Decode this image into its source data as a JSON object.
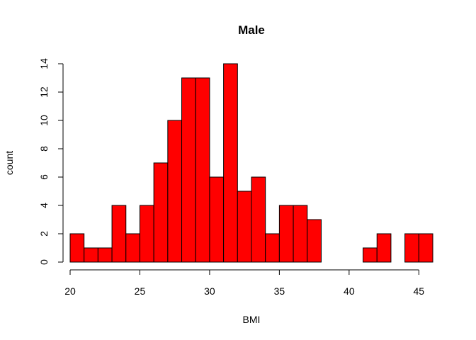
{
  "chart_data": {
    "type": "bar",
    "title": "Male",
    "xlabel": "BMI",
    "ylabel": "count",
    "bar_color": "#ff0000",
    "bins": [
      {
        "start": 20,
        "end": 21,
        "value": 2
      },
      {
        "start": 21,
        "end": 22,
        "value": 1
      },
      {
        "start": 22,
        "end": 23,
        "value": 1
      },
      {
        "start": 23,
        "end": 24,
        "value": 4
      },
      {
        "start": 24,
        "end": 25,
        "value": 2
      },
      {
        "start": 25,
        "end": 26,
        "value": 4
      },
      {
        "start": 26,
        "end": 27,
        "value": 7
      },
      {
        "start": 27,
        "end": 28,
        "value": 10
      },
      {
        "start": 28,
        "end": 29,
        "value": 13
      },
      {
        "start": 29,
        "end": 30,
        "value": 13
      },
      {
        "start": 30,
        "end": 31,
        "value": 6
      },
      {
        "start": 31,
        "end": 32,
        "value": 14
      },
      {
        "start": 32,
        "end": 33,
        "value": 5
      },
      {
        "start": 33,
        "end": 34,
        "value": 6
      },
      {
        "start": 34,
        "end": 35,
        "value": 2
      },
      {
        "start": 35,
        "end": 36,
        "value": 4
      },
      {
        "start": 36,
        "end": 37,
        "value": 4
      },
      {
        "start": 37,
        "end": 38,
        "value": 3
      },
      {
        "start": 38,
        "end": 39,
        "value": 0
      },
      {
        "start": 39,
        "end": 40,
        "value": 0
      },
      {
        "start": 40,
        "end": 41,
        "value": 0
      },
      {
        "start": 41,
        "end": 42,
        "value": 1
      },
      {
        "start": 42,
        "end": 43,
        "value": 2
      },
      {
        "start": 43,
        "end": 44,
        "value": 0
      },
      {
        "start": 44,
        "end": 45,
        "value": 2
      },
      {
        "start": 45,
        "end": 46,
        "value": 2
      }
    ],
    "xlim": [
      20,
      46
    ],
    "ylim": [
      0,
      14
    ],
    "x_ticks": [
      20,
      25,
      30,
      35,
      40,
      45
    ],
    "y_ticks": [
      0,
      2,
      4,
      6,
      8,
      10,
      12,
      14
    ],
    "grid": false,
    "legend": "none"
  }
}
